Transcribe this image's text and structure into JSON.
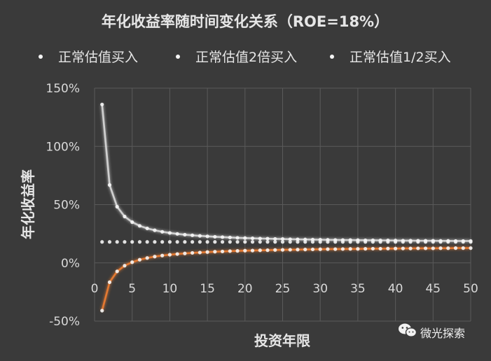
{
  "chart_data": {
    "type": "line",
    "title": "年化收益率随时间变化关系（ROE=18%）",
    "xlabel": "投资年限",
    "ylabel": "年化收益率",
    "xlim": [
      0,
      50
    ],
    "ylim": [
      -50,
      150
    ],
    "x_ticks": [
      "0",
      "5",
      "10",
      "15",
      "20",
      "25",
      "30",
      "35",
      "40",
      "45",
      "50"
    ],
    "y_ticks": [
      "-50%",
      "0%",
      "50%",
      "100%",
      "150%"
    ],
    "y_tick_values": [
      -50,
      0,
      50,
      100,
      150
    ],
    "grid": true,
    "legend_position": "top",
    "x": [
      1,
      2,
      3,
      4,
      5,
      6,
      7,
      8,
      9,
      10,
      11,
      12,
      13,
      14,
      15,
      16,
      17,
      18,
      19,
      20,
      21,
      22,
      23,
      24,
      25,
      26,
      27,
      28,
      29,
      30,
      31,
      32,
      33,
      34,
      35,
      36,
      37,
      38,
      39,
      40,
      41,
      42,
      43,
      44,
      45,
      46,
      47,
      48,
      49,
      50
    ],
    "series": [
      {
        "name": "正常估值买入",
        "color": "#5b9bd5",
        "values": [
          18,
          18,
          18,
          18,
          18,
          18,
          18,
          18,
          18,
          18,
          18,
          18,
          18,
          18,
          18,
          18,
          18,
          18,
          18,
          18,
          18,
          18,
          18,
          18,
          18,
          18,
          18,
          18,
          18,
          18,
          18,
          18,
          18,
          18,
          18,
          18,
          18,
          18,
          18,
          18,
          18,
          18,
          18,
          18,
          18,
          18,
          18,
          18,
          18,
          18
        ]
      },
      {
        "name": "正常估值2倍买入",
        "color": "#ed7d31",
        "values": [
          -41,
          -16.6,
          -7.3,
          -2.4,
          0.6,
          2.7,
          4.2,
          5.4,
          6.3,
          7.0,
          7.6,
          8.1,
          8.6,
          8.9,
          9.3,
          9.6,
          9.8,
          10.1,
          10.3,
          10.5,
          10.6,
          10.8,
          10.9,
          11.1,
          11.2,
          11.3,
          11.4,
          11.5,
          11.6,
          11.7,
          11.8,
          11.8,
          11.9,
          12.0,
          12.0,
          12.1,
          12.2,
          12.2,
          12.3,
          12.3,
          12.4,
          12.4,
          12.5,
          12.5,
          12.5,
          12.6,
          12.6,
          12.7,
          12.7,
          12.7
        ]
      },
      {
        "name": "正常估值1/2买入",
        "color": "#d9d9d9",
        "values": [
          136,
          66.9,
          48.2,
          39.8,
          35.0,
          31.8,
          29.6,
          28.0,
          26.7,
          25.7,
          24.9,
          24.2,
          23.7,
          23.2,
          22.8,
          22.4,
          22.1,
          21.8,
          21.5,
          21.3,
          21.1,
          20.9,
          20.8,
          20.6,
          20.5,
          20.3,
          20.2,
          20.1,
          20.0,
          19.9,
          19.8,
          19.7,
          19.6,
          19.6,
          19.5,
          19.4,
          19.4,
          19.3,
          19.3,
          19.2,
          19.1,
          19.1,
          19.0,
          19.0,
          19.0,
          18.9,
          18.9,
          18.8,
          18.8,
          18.8
        ]
      }
    ]
  },
  "watermark": {
    "text": "微光探索",
    "icon": "wechat-icon"
  }
}
